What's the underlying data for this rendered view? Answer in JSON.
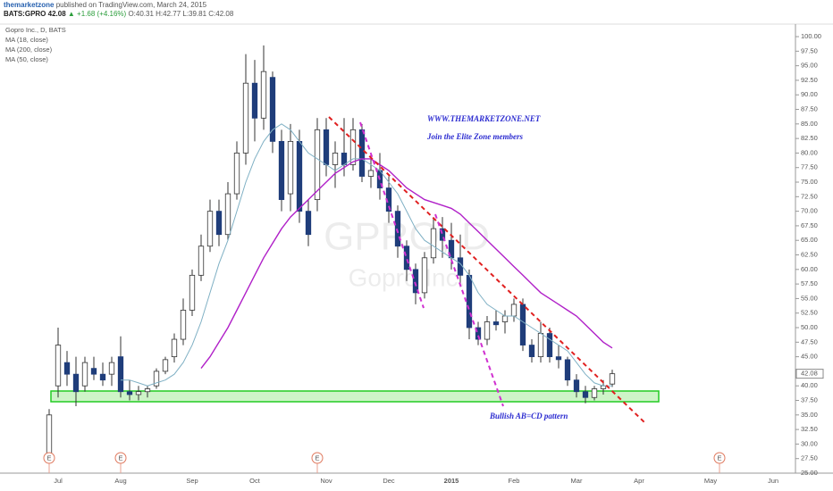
{
  "header": {
    "publisher": "themarketzone",
    "published": "published on TradingView.com, March 24, 2015",
    "symbol": "BATS:GPRO",
    "last": "42.08",
    "change": "▲ +1.68 (+4.16%)",
    "ohlc": "O:40.31 H:42.77 L:39.81 C:42.08"
  },
  "chart_data": {
    "type": "candlestick",
    "watermark": "GPRO, D",
    "watermark_subtitle": "Gopro Inc.",
    "annotations": [
      "WWW.THEMARKETZONE.NET",
      "Join the Elite Zone members",
      "Bullish AB=CD pattern"
    ],
    "categories": [
      null,
      "Jul",
      null,
      null,
      null,
      null,
      null,
      null,
      "Aug",
      null,
      null,
      null,
      null,
      null,
      null,
      null,
      "Sep",
      null,
      null,
      null,
      null,
      null,
      null,
      "Oct",
      null,
      null,
      null,
      null,
      null,
      null,
      null,
      "Nov",
      null,
      null,
      null,
      null,
      null,
      null,
      "Dec",
      null,
      null,
      null,
      null,
      null,
      null,
      "2015",
      null,
      null,
      null,
      null,
      null,
      null,
      "Feb",
      null,
      null,
      null,
      null,
      null,
      null,
      "Mar",
      null,
      null,
      null,
      null,
      null,
      null,
      "Apr",
      null,
      null,
      null,
      null,
      null,
      null,
      null,
      "May",
      null,
      null,
      null,
      null,
      null,
      null,
      "Jun",
      null,
      null
    ],
    "events": [
      "E",
      null,
      null,
      null,
      null,
      null,
      null,
      null,
      "E",
      null,
      null,
      null,
      null,
      null,
      null,
      null,
      null,
      null,
      null,
      null,
      null,
      null,
      null,
      null,
      null,
      null,
      null,
      null,
      null,
      null,
      "E",
      null,
      null,
      null,
      null,
      null,
      null,
      null,
      null,
      null,
      null,
      null,
      null,
      null,
      null,
      null,
      null,
      null,
      null,
      null,
      null,
      null,
      null,
      null,
      null,
      null,
      null,
      null,
      null,
      null,
      null,
      null,
      null,
      null,
      null,
      null,
      null,
      null,
      null,
      null,
      null,
      null,
      null,
      null,
      null,
      "E",
      null,
      null,
      null,
      null,
      null,
      null,
      null,
      null
    ],
    "up_color": "#ffffff",
    "down_color": "#1f3d7a",
    "wick_color": "#333333",
    "series": [
      {
        "name": "Gopro Inc., D, BATS",
        "open": [
          28,
          40,
          44,
          42,
          40,
          43,
          42,
          42,
          45,
          39,
          38.5,
          39,
          40,
          42.5,
          45,
          48,
          53,
          59,
          64,
          70,
          66,
          73,
          80,
          92,
          86,
          93,
          82,
          73,
          82,
          70,
          72,
          84,
          78,
          80,
          78,
          84,
          76,
          77,
          74,
          70,
          64,
          60,
          56,
          62,
          67,
          65,
          62,
          59,
          50,
          48,
          51,
          51,
          52,
          54,
          47,
          45,
          49,
          45,
          44.5,
          41,
          39,
          38,
          39.5,
          40.31,
          null,
          null,
          null,
          null,
          null,
          null,
          null,
          null,
          null,
          null,
          null,
          null,
          null,
          null,
          null,
          null,
          null,
          null,
          null,
          null
        ],
        "high": [
          36,
          50,
          46,
          45,
          45,
          45,
          44,
          45,
          48.5,
          41,
          40,
          40,
          43,
          45,
          49,
          55,
          60,
          66,
          72,
          72,
          75,
          82,
          97,
          96,
          98.5,
          94,
          84,
          85,
          84,
          72,
          86,
          86,
          82,
          86,
          86,
          85,
          80,
          80,
          76,
          71,
          65,
          61,
          63,
          69,
          69,
          68,
          66,
          60,
          51,
          52,
          53,
          53,
          55,
          55,
          48,
          51,
          50,
          47,
          45,
          42,
          40,
          40,
          41,
          42.77,
          null,
          null,
          null,
          null,
          null,
          null,
          null,
          null,
          null,
          null,
          null,
          null,
          null,
          null,
          null,
          null,
          null,
          null,
          null,
          null
        ],
        "low": [
          27,
          38,
          40,
          36.5,
          39,
          41,
          40,
          40,
          38,
          37.5,
          37.5,
          38,
          39.5,
          42,
          44,
          47,
          52,
          58,
          63,
          64,
          65,
          72,
          78,
          82,
          84,
          80,
          70,
          70,
          68,
          64,
          70,
          76,
          74,
          76,
          77,
          75,
          74,
          72,
          68,
          62,
          58,
          54,
          55,
          61,
          62,
          60,
          57,
          48,
          47,
          47,
          49.5,
          49,
          51,
          46,
          44,
          44,
          44,
          43,
          40,
          38,
          37,
          37.5,
          38.5,
          39.81,
          null,
          null,
          null,
          null,
          null,
          null,
          null,
          null,
          null,
          null,
          null,
          null,
          null,
          null,
          null,
          null,
          null,
          null,
          null,
          null
        ],
        "close": [
          35,
          47,
          42,
          39,
          44,
          42,
          41,
          44,
          39,
          38.5,
          39,
          39.5,
          42.5,
          44.5,
          48,
          53,
          59,
          64,
          70,
          66,
          73,
          80,
          92,
          86,
          94,
          82,
          72,
          82,
          70,
          66,
          84,
          78,
          80,
          78,
          84,
          76,
          77,
          74,
          70,
          64,
          60,
          56,
          62,
          67,
          65,
          62,
          59,
          50,
          48,
          51,
          50.5,
          52,
          54,
          47,
          45,
          49,
          45,
          44.5,
          41,
          39,
          38,
          39.5,
          40,
          42.08,
          null,
          null,
          null,
          null,
          null,
          null,
          null,
          null,
          null,
          null,
          null,
          null,
          null,
          null,
          null,
          null,
          null,
          null,
          null,
          null
        ]
      },
      {
        "name": "MA (18, close)",
        "color": "#7fb0c4",
        "values": [
          null,
          null,
          null,
          null,
          null,
          null,
          null,
          null,
          41,
          41,
          40.5,
          40,
          40.5,
          41,
          42,
          44,
          47,
          51,
          56,
          61,
          65,
          70,
          75,
          79,
          82,
          84,
          85,
          84,
          82,
          80,
          79,
          78,
          77,
          78,
          79,
          79,
          78,
          77,
          75,
          73,
          70,
          67,
          65,
          64,
          63,
          62,
          61,
          59,
          56,
          54,
          53,
          52,
          52,
          51,
          50,
          49,
          48,
          47,
          46,
          44,
          42,
          40.5,
          40,
          40,
          null,
          null,
          null,
          null,
          null,
          null,
          null,
          null,
          null,
          null,
          null,
          null,
          null,
          null,
          null,
          null,
          null,
          null,
          null,
          null
        ]
      },
      {
        "name": "MA (200, close)",
        "color": "#e08020",
        "values": [
          null,
          null,
          null,
          null,
          null,
          null,
          null,
          null,
          null,
          null,
          null,
          null,
          null,
          null,
          null,
          null,
          null,
          null,
          null,
          null,
          null,
          null,
          null,
          null,
          null,
          null,
          null,
          null,
          null,
          null,
          null,
          null,
          null,
          null,
          null,
          null,
          null,
          null,
          null,
          null,
          null,
          null,
          null,
          null,
          null,
          null,
          null,
          null,
          null,
          null,
          null,
          null,
          null,
          null,
          null,
          null,
          null,
          null,
          null,
          null,
          null,
          null,
          null,
          null,
          null,
          null,
          null,
          null,
          null,
          null,
          null,
          null,
          null,
          null,
          null,
          null,
          null,
          null,
          null,
          null,
          null,
          null,
          null,
          null
        ]
      },
      {
        "name": "MA (50, close)",
        "color": "#b020c8",
        "values": [
          null,
          null,
          null,
          null,
          null,
          null,
          null,
          null,
          null,
          null,
          null,
          null,
          null,
          null,
          null,
          null,
          null,
          43,
          45,
          47.5,
          50,
          53,
          56,
          59,
          62,
          64.5,
          67,
          69,
          70.5,
          72,
          73.5,
          75,
          76.5,
          77.5,
          78.5,
          79,
          79,
          78,
          77,
          75.5,
          74,
          73,
          72,
          71.5,
          71,
          70.5,
          69.5,
          68,
          66.5,
          65,
          63.5,
          62,
          60.5,
          59,
          57.5,
          56,
          55,
          54,
          53,
          52,
          50.5,
          49,
          47.5,
          46.5,
          null,
          null,
          null,
          null,
          null,
          null,
          null,
          null,
          null,
          null,
          null,
          null,
          null,
          null,
          null,
          null,
          null,
          null,
          null,
          null
        ]
      }
    ],
    "ylim": [
      25,
      102
    ],
    "yticks": [
      {
        "value": 100,
        "label": "100.00"
      },
      {
        "value": 97.5,
        "label": "97.50"
      },
      {
        "value": 95,
        "label": "95.00"
      },
      {
        "value": 92.5,
        "label": "92.50"
      },
      {
        "value": 90,
        "label": "90.00"
      },
      {
        "value": 87.5,
        "label": "87.50"
      },
      {
        "value": 85,
        "label": "85.00"
      },
      {
        "value": 82.5,
        "label": "82.50"
      },
      {
        "value": 80,
        "label": "80.00"
      },
      {
        "value": 77.5,
        "label": "77.50"
      },
      {
        "value": 75,
        "label": "75.00"
      },
      {
        "value": 72.5,
        "label": "72.50"
      },
      {
        "value": 70,
        "label": "70.00"
      },
      {
        "value": 67.5,
        "label": "67.50"
      },
      {
        "value": 65,
        "label": "65.00"
      },
      {
        "value": 62.5,
        "label": "62.50"
      },
      {
        "value": 60,
        "label": "60.00"
      },
      {
        "value": 57.5,
        "label": "57.50"
      },
      {
        "value": 55,
        "label": "55.00"
      },
      {
        "value": 52.5,
        "label": "52.50"
      },
      {
        "value": 50,
        "label": "50.00"
      },
      {
        "value": 47.5,
        "label": "47.50"
      },
      {
        "value": 45,
        "label": "45.00"
      },
      {
        "value": 40,
        "label": "40.00"
      },
      {
        "value": 37.5,
        "label": "37.50"
      },
      {
        "value": 35,
        "label": "35.00"
      },
      {
        "value": 32.5,
        "label": "32.50"
      },
      {
        "value": 30,
        "label": "30.00"
      },
      {
        "value": 27.5,
        "label": "27.50"
      },
      {
        "value": 25,
        "label": "25.00"
      }
    ],
    "grid": false
  }
}
